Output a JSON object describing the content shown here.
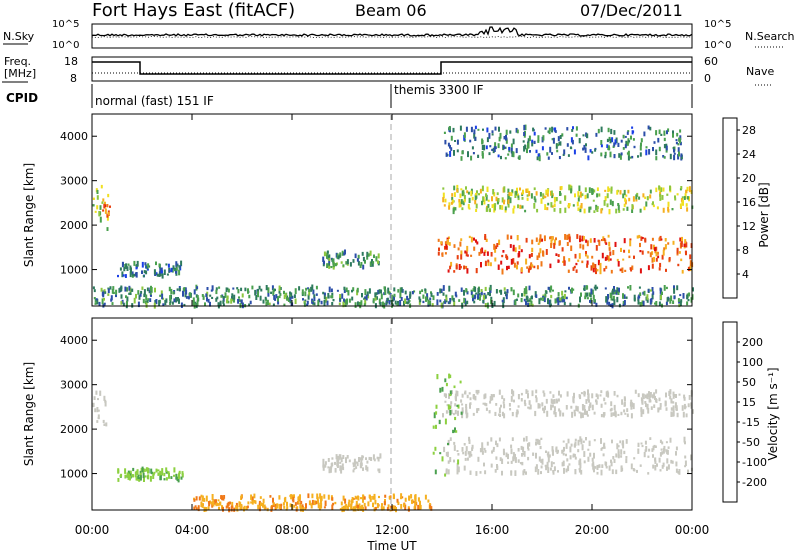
{
  "header": {
    "title": "Fort Hays East (fitACF)",
    "beam": "Beam 06",
    "date": "07/Dec/2011"
  },
  "noise_panel": {
    "left_label": "N.Sky",
    "left_ticks": [
      "10^5",
      "10^0"
    ],
    "right_ticks": [
      "10^5",
      "10^0"
    ],
    "right_label": "N.Search"
  },
  "freq_panel": {
    "left_label_1": "Freq.",
    "left_label_2": "[MHz]",
    "left_ticks": [
      "18",
      "8"
    ],
    "right_ticks": [
      "60",
      "0"
    ],
    "right_label": "Nave"
  },
  "cpid_panel": {
    "label": "CPID",
    "segments": [
      {
        "start_hour": 0,
        "text": "normal (fast) 151 IF"
      },
      {
        "start_hour": 12,
        "text": "themis 3300 IF"
      }
    ]
  },
  "x_axis": {
    "title": "Time UT",
    "ticks": [
      "00:00",
      "04:00",
      "08:00",
      "12:00",
      "16:00",
      "20:00",
      "00:00"
    ],
    "tick_hours": [
      0,
      4,
      8,
      12,
      16,
      20,
      24
    ]
  },
  "chart_data": [
    {
      "type": "heatmap",
      "title": "",
      "xlabel": "Time UT",
      "ylabel": "Slant Range [km]",
      "xlim": [
        0,
        24
      ],
      "ylim": [
        180,
        4500
      ],
      "yticks": [
        1000,
        2000,
        3000,
        4000
      ],
      "yticklabels": [
        "1000",
        "2000",
        "3000",
        "4000"
      ],
      "colorbar": {
        "label": "Power [dB]",
        "ticks": [
          "28",
          "24",
          "20",
          "16",
          "12",
          "8",
          "4"
        ],
        "tick_values": [
          28,
          24,
          20,
          16,
          12,
          8,
          4
        ],
        "range": [
          0,
          30
        ],
        "colors": [
          "#1a3fe6",
          "#2b4ea8",
          "#2e7a5e",
          "#4aa04e",
          "#8cc63f",
          "#f0e020",
          "#f5b020",
          "#f07818",
          "#e84010",
          "#e01010"
        ]
      },
      "regions": [
        {
          "t": [
            0.0,
            0.65
          ],
          "r": [
            1900,
            2900
          ],
          "level": 14
        },
        {
          "t": [
            0.4,
            0.7
          ],
          "r": [
            2200,
            2600
          ],
          "level": 24
        },
        {
          "t": [
            1.0,
            3.6
          ],
          "r": [
            850,
            1150
          ],
          "level": 6
        },
        {
          "t": [
            9.2,
            11.5
          ],
          "r": [
            1050,
            1400
          ],
          "level": 8
        },
        {
          "t": [
            13.8,
            24.0
          ],
          "r": [
            950,
            1750
          ],
          "level": 24
        },
        {
          "t": [
            14.0,
            24.0
          ],
          "r": [
            2300,
            2850
          ],
          "level": 15
        },
        {
          "t": [
            14.0,
            23.6
          ],
          "r": [
            3500,
            4200
          ],
          "level": 7
        },
        {
          "t": [
            0.0,
            24.0
          ],
          "r": [
            180,
            600
          ],
          "level": 8
        }
      ]
    },
    {
      "type": "heatmap",
      "title": "",
      "xlabel": "Time UT",
      "ylabel": "Slant Range [km]",
      "xlim": [
        0,
        24
      ],
      "ylim": [
        180,
        4500
      ],
      "yticks": [
        1000,
        2000,
        3000,
        4000
      ],
      "yticklabels": [
        "1000",
        "2000",
        "3000",
        "4000"
      ],
      "colorbar": {
        "label": "Velocity [m s⁻¹]",
        "ticks": [
          "200",
          "100",
          "50",
          "15",
          "-15",
          "-50",
          "-100",
          "-200"
        ],
        "colors": [
          "#1a3fe6",
          "#2e7a5e",
          "#4aa04e",
          "#8cd040",
          "#c8c8c0",
          "#f5b020",
          "#f07818",
          "#e84010",
          "#e01010"
        ]
      },
      "ground_scatter_color": "#c8c8c0",
      "regions": [
        {
          "t": [
            0.0,
            0.6
          ],
          "r": [
            2100,
            2900
          ],
          "kind": "ground"
        },
        {
          "t": [
            1.0,
            3.6
          ],
          "r": [
            850,
            1100
          ],
          "kind": "green"
        },
        {
          "t": [
            9.2,
            11.5
          ],
          "r": [
            1050,
            1400
          ],
          "kind": "ground"
        },
        {
          "t": [
            14.0,
            24.0
          ],
          "r": [
            1000,
            1800
          ],
          "kind": "ground"
        },
        {
          "t": [
            14.0,
            24.0
          ],
          "r": [
            2300,
            2850
          ],
          "kind": "ground"
        },
        {
          "t": [
            13.6,
            14.8
          ],
          "r": [
            900,
            3200
          ],
          "kind": "green"
        },
        {
          "t": [
            4.0,
            13.6
          ],
          "r": [
            180,
            500
          ],
          "kind": "orange"
        }
      ]
    }
  ]
}
